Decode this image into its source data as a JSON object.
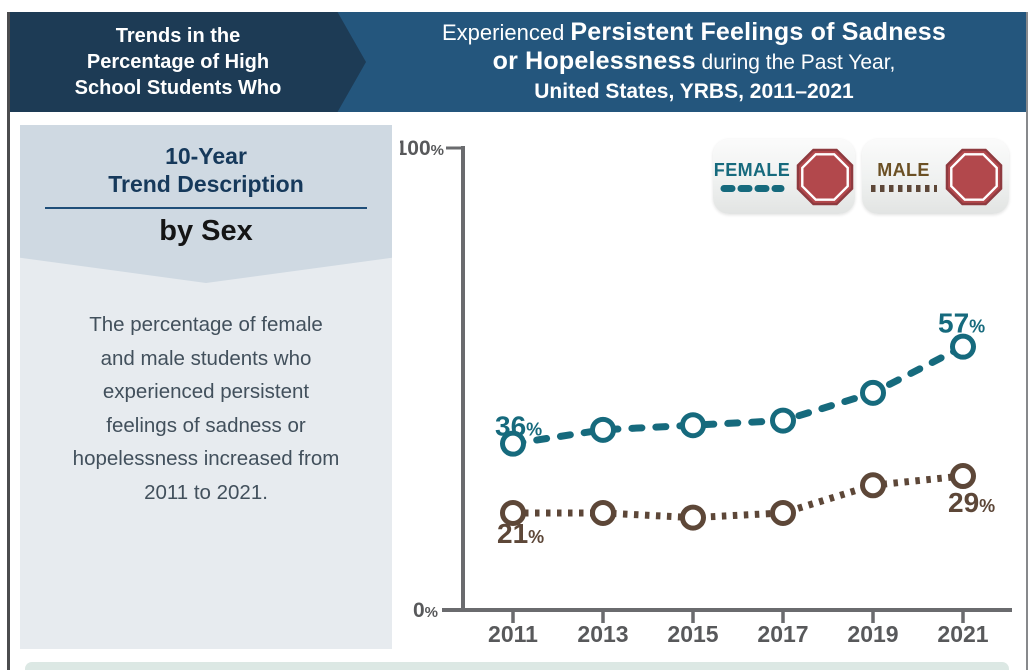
{
  "header": {
    "left_box": {
      "bg": "#1d3b55",
      "lines": [
        "Trends in the",
        "Percentage of High",
        "School Students Who"
      ]
    },
    "right": {
      "bg": "#24567d",
      "prefix": "Experienced ",
      "bold1": "Persistent Feelings of Sadness",
      "bold2": "or Hopelessness",
      "suffix": " during the Past Year,",
      "line3": "United States, YRBS, 2011–2021"
    }
  },
  "sidebar": {
    "heading_line1": "10-Year",
    "heading_line2": "Trend Description",
    "subheading": "by Sex",
    "description": "The percentage of female and male students who experienced persistent feelings of sadness or hopelessness increased from 2011 to 2021."
  },
  "legend": {
    "items": [
      {
        "label": "FEMALE",
        "label_color": "#166a7d",
        "line_color": "#166a7d",
        "line_style": "dashed",
        "icon": "stop-octagon",
        "icon_fill": "#b2484c",
        "icon_border": "#8e3a3f"
      },
      {
        "label": "MALE",
        "label_color": "#6b5024",
        "line_color": "#5d4738",
        "line_style": "dotted",
        "icon": "stop-octagon",
        "icon_fill": "#b2484c",
        "icon_border": "#8e3a3f"
      }
    ]
  },
  "chart_data": {
    "type": "line",
    "x": [
      2011,
      2013,
      2015,
      2017,
      2019,
      2021
    ],
    "x_tick_labels": [
      "2011",
      "2013",
      "2015",
      "2017",
      "2019",
      "2021"
    ],
    "series": [
      {
        "name": "Female",
        "values": [
          36,
          39,
          40,
          41,
          47,
          57
        ],
        "color": "#166a7d",
        "line_style": "dashed",
        "first_label": "36%",
        "last_label": "57%"
      },
      {
        "name": "Male",
        "values": [
          21,
          21,
          20,
          21,
          27,
          29
        ],
        "color": "#5d4738",
        "line_style": "dotted",
        "first_label": "21%",
        "last_label": "29%"
      }
    ],
    "ylim": [
      0,
      100
    ],
    "y_ticks": [
      {
        "value": 0,
        "label": "0%"
      },
      {
        "value": 100,
        "label": "100%"
      }
    ],
    "grid": false,
    "legend_position": "top-right",
    "axis_color": "#6a6b6e",
    "tick_label_color": "#58595b",
    "marker": "open-circle"
  },
  "bottom_strip": {
    "color": "#dce8e4"
  }
}
